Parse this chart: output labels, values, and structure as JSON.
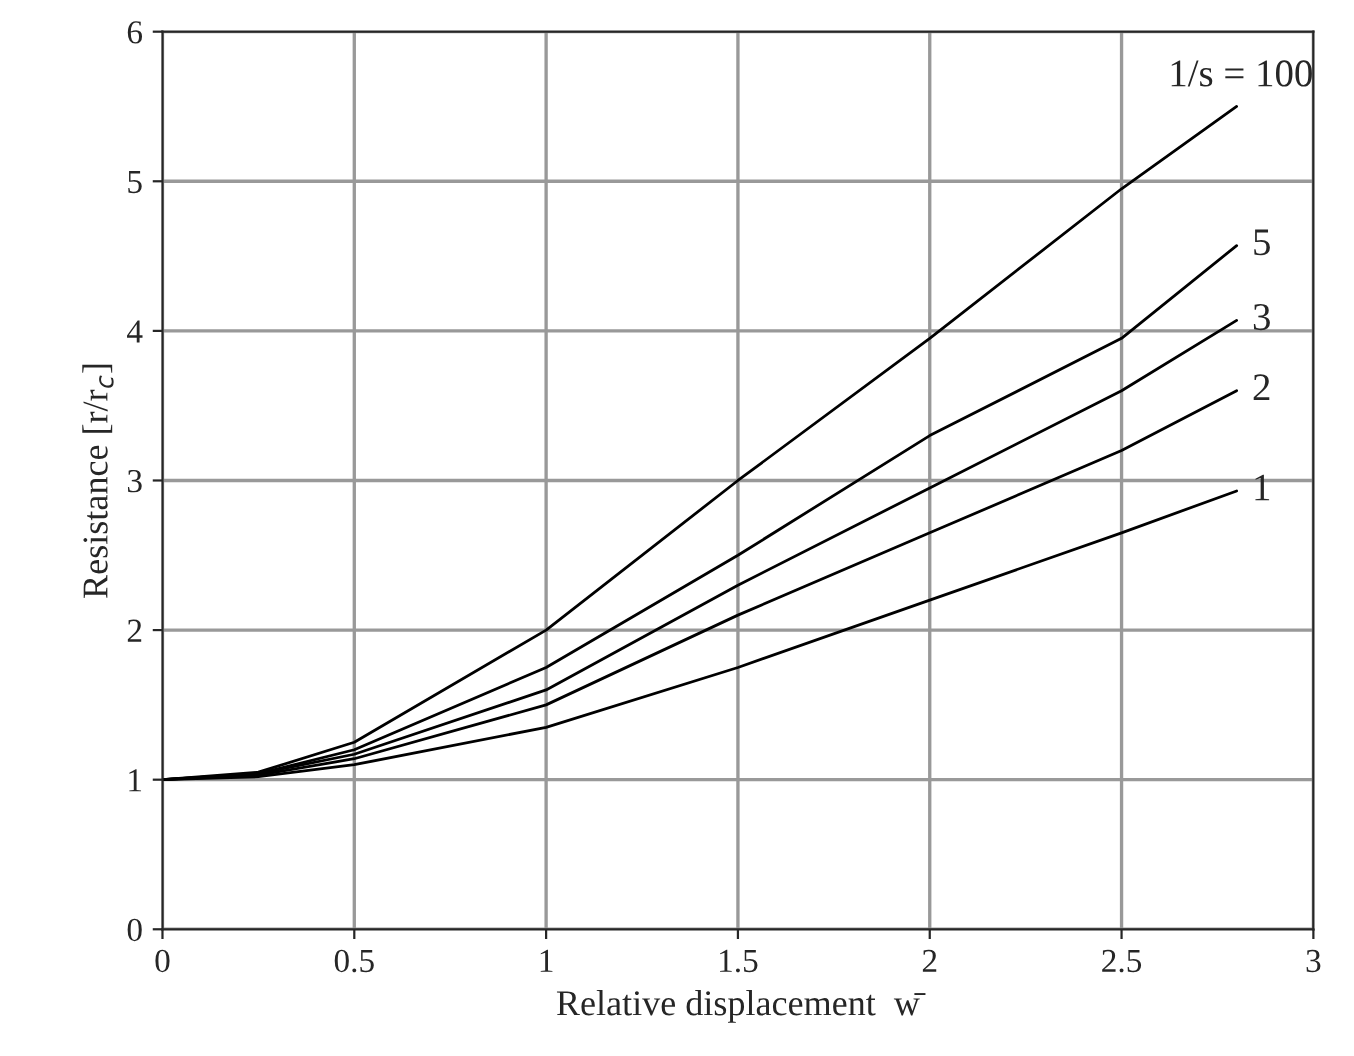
{
  "chart_data": {
    "type": "line",
    "xlabel": "Relative displacement  w̄",
    "ylabel": "Resistance [r/r$_{c}$]",
    "x": [
      0,
      0.25,
      0.5,
      1,
      1.5,
      2,
      2.5,
      2.8
    ],
    "series": [
      {
        "name": "1/s = 100",
        "color": "#000000",
        "values": [
          1,
          1.05,
          1.25,
          2.0,
          3.0,
          3.95,
          4.95,
          5.5
        ]
      },
      {
        "name": "5",
        "color": "#000000",
        "values": [
          1,
          1.04,
          1.2,
          1.75,
          2.5,
          3.3,
          3.95,
          4.57
        ]
      },
      {
        "name": "3",
        "color": "#000000",
        "values": [
          1,
          1.04,
          1.17,
          1.6,
          2.3,
          2.95,
          3.6,
          4.07
        ]
      },
      {
        "name": "2",
        "color": "#000000",
        "values": [
          1,
          1.03,
          1.14,
          1.5,
          2.1,
          2.65,
          3.2,
          3.6
        ]
      },
      {
        "name": "1",
        "color": "#000000",
        "values": [
          1,
          1.02,
          1.1,
          1.35,
          1.75,
          2.2,
          2.65,
          2.93
        ]
      }
    ],
    "xlim": [
      0,
      3
    ],
    "ylim": [
      0,
      6
    ],
    "xticks": [
      0,
      0.5,
      1,
      1.5,
      2,
      2.5,
      3
    ],
    "yticks": [
      0,
      1,
      2,
      3,
      4,
      5,
      6
    ],
    "grid": true,
    "line_style": "solid"
  }
}
